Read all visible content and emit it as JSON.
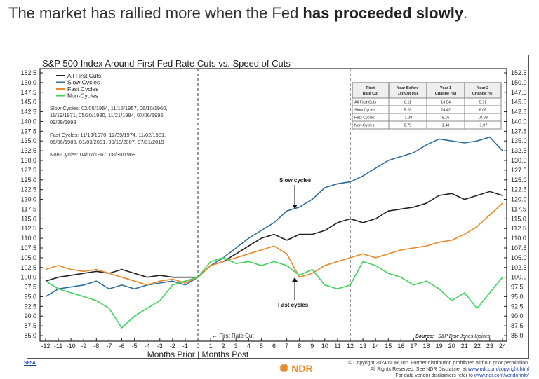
{
  "headline": {
    "normal": "The market has rallied more when the Fed ",
    "bold": "has proceeded slowly",
    "end": "."
  },
  "chart_data": {
    "type": "line",
    "title": "S&P 500 Index Around First Fed Rate Cuts vs. Speed of Cuts",
    "xlabel": "Months Prior | Months Post",
    "xlim": [
      -12,
      24
    ],
    "ylim": [
      85,
      152.5
    ],
    "x_ticks": [
      -12,
      -11,
      -10,
      -9,
      -8,
      -7,
      -6,
      -5,
      -4,
      -3,
      -2,
      -1,
      0,
      1,
      2,
      3,
      4,
      5,
      6,
      7,
      8,
      9,
      10,
      11,
      12,
      13,
      14,
      15,
      16,
      17,
      18,
      19,
      20,
      21,
      22,
      23,
      24
    ],
    "y_ticks": [
      85.0,
      87.5,
      90.0,
      92.5,
      95.0,
      97.5,
      100.0,
      102.5,
      105.0,
      107.5,
      110.0,
      112.5,
      115.0,
      117.5,
      120.0,
      122.5,
      125.0,
      127.5,
      130.0,
      132.5,
      135.0,
      137.5,
      140.0,
      142.5,
      145.0,
      147.5,
      150.0,
      152.5
    ],
    "legend_position": "top-left",
    "series": [
      {
        "name": "All First Cuts",
        "color": "#222222",
        "values": [
          99,
          100,
          100.5,
          101,
          101.5,
          101,
          102,
          101,
          100,
          100.5,
          100,
          100,
          100,
          103,
          104,
          106,
          108,
          110,
          111,
          109.5,
          111,
          111,
          112,
          114,
          115,
          114,
          115,
          117,
          117.5,
          118,
          119,
          121,
          121.5,
          120,
          121,
          122,
          121
        ]
      },
      {
        "name": "Slow Cycles",
        "color": "#2f6f9f",
        "values": [
          95,
          97,
          97.5,
          98,
          99,
          97,
          98,
          97,
          98,
          98.5,
          99,
          98,
          100,
          103,
          105,
          107.5,
          110,
          112,
          114,
          117,
          118,
          120,
          123,
          124,
          124.5,
          126,
          128,
          130,
          131,
          132,
          134,
          135.5,
          135,
          134.5,
          135,
          136,
          132.5
        ]
      },
      {
        "name": "Fast Cycles",
        "color": "#e8892c",
        "values": [
          102,
          103,
          102,
          101.5,
          102,
          101,
          100,
          99,
          98,
          99,
          99.5,
          98.5,
          100,
          103,
          104,
          105,
          106,
          107,
          108,
          106,
          100,
          101,
          103,
          104,
          105,
          106,
          105,
          106,
          107,
          107.5,
          108,
          109,
          109.5,
          111,
          113,
          116,
          119
        ]
      },
      {
        "name": "Non-Cycles",
        "color": "#3fd35a",
        "values": [
          99,
          97,
          96,
          95,
          94,
          92,
          87,
          90,
          92,
          94,
          98,
          99,
          100,
          104,
          105,
          103.5,
          104,
          103,
          104,
          103,
          100.5,
          102,
          98,
          97,
          98,
          104,
          103,
          101,
          100,
          98,
          99,
          97,
          94,
          96,
          92,
          96,
          100
        ]
      }
    ],
    "notes": {
      "slow": "Slow Cycles: 02/05/1954, 11/15/1957, 06/10/1960,",
      "slow2": "11/19/1971, 05/30/1980, 11/21/1984, 07/06/1995,",
      "slow3": "09/29/1998",
      "fast": "Fast Cycles: 11/13/1970, 12/09/1974, 11/02/1981,",
      "fast2": "06/06/1989, 01/03/2001, 09/18/2007, 07/31/2019",
      "non": "Non-Cycles: 04/07/1967, 08/30/1968"
    },
    "annotations": {
      "slow": "Slow cycles",
      "fast": "Fast cycles",
      "cut": "First Rate Cut",
      "source_label": "Source:",
      "source": "S&P Dow Jones Indices"
    },
    "table": {
      "headers": [
        [
          "First",
          "Rate Cut"
        ],
        [
          "Year Before",
          "1st Cut (%)"
        ],
        [
          "Year 1",
          "Change (%)"
        ],
        [
          "Year 2",
          "Change (%)"
        ]
      ],
      "rows": [
        [
          "All First Cuts",
          "0.11",
          "14.54",
          "5.71"
        ],
        [
          "Slow Cycles",
          "5.28",
          "24.42",
          "6.06"
        ],
        [
          "Fast Cycles",
          "-1.29",
          "5.16",
          "10.93"
        ],
        [
          "Non-Cycles",
          "0.75",
          "1.43",
          "-1.97"
        ]
      ]
    }
  },
  "footer": {
    "code": "S854.",
    "logo": "NDR",
    "line1": "© Copyright 2024 NDR, Inc. Further distribution prohibited without prior permission.",
    "line2": "All Rights Reserved. See NDR Disclaimer at ",
    "link2": "www.ndr.com/copyright.html",
    "line3": "For data vendor disclaimers refer to ",
    "link3": "www.ndr.com/vendorinfo/"
  }
}
